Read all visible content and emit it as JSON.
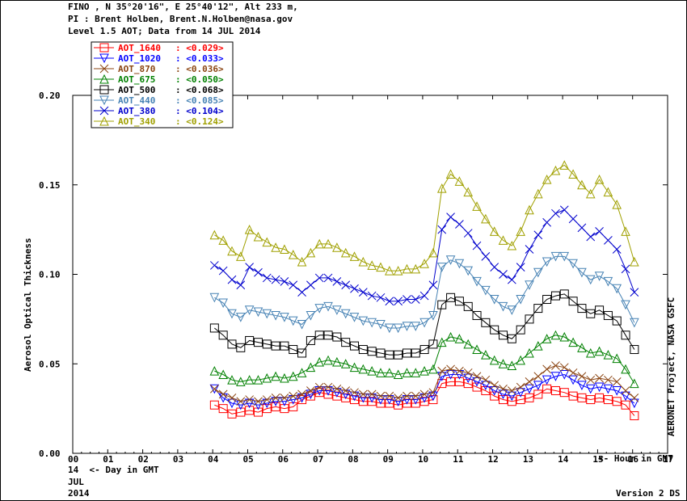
{
  "header": {
    "line1": "FINO , N 35°20'16\", E 25°40'12\", Alt 233 m,",
    "line2": "PI : Brent Holben, Brent.N.Holben@nasa.gov",
    "line3": "Level 1.5 AOT; Data from 14 JUL 2014"
  },
  "footer": {
    "day": "14",
    "day_label": "<- Day in GMT",
    "month": "JUL",
    "year": "2014",
    "version": "Version 2 DS"
  },
  "chart_data": {
    "type": "scatter",
    "title": "",
    "ylabel": "Aerosol Optical Thickness",
    "xlabel": "<- Hour in GMT",
    "right_label": "AERONET Project, NASA GSFC",
    "xlim": [
      0,
      17
    ],
    "ylim": [
      0.0,
      0.2
    ],
    "x_ticks": [
      "00",
      "01",
      "02",
      "03",
      "04",
      "05",
      "06",
      "07",
      "08",
      "09",
      "10",
      "11",
      "12",
      "13",
      "14",
      "15",
      "16",
      "17"
    ],
    "y_ticks": [
      "0.00",
      "0.05",
      "0.10",
      "0.15",
      "0.20"
    ],
    "legend_position": "top-left",
    "x": [
      4.05,
      4.3,
      4.55,
      4.8,
      5.05,
      5.3,
      5.55,
      5.8,
      6.05,
      6.3,
      6.55,
      6.8,
      7.05,
      7.3,
      7.55,
      7.8,
      8.05,
      8.3,
      8.55,
      8.8,
      9.05,
      9.3,
      9.55,
      9.8,
      10.05,
      10.3,
      10.55,
      10.8,
      11.05,
      11.3,
      11.55,
      11.8,
      12.05,
      12.3,
      12.55,
      12.8,
      13.05,
      13.3,
      13.55,
      13.8,
      14.05,
      14.3,
      14.55,
      14.8,
      15.05,
      15.3,
      15.55,
      15.8,
      16.05
    ],
    "series": [
      {
        "name": "AOT_1640",
        "mean": "<0.029>",
        "color": "#ff0000",
        "marker": "square",
        "values": [
          0.027,
          0.025,
          0.022,
          0.023,
          0.024,
          0.023,
          0.025,
          0.026,
          0.025,
          0.026,
          0.03,
          0.032,
          0.034,
          0.033,
          0.032,
          0.031,
          0.03,
          0.029,
          0.029,
          0.028,
          0.028,
          0.027,
          0.028,
          0.028,
          0.029,
          0.03,
          0.039,
          0.04,
          0.04,
          0.039,
          0.037,
          0.035,
          0.032,
          0.03,
          0.029,
          0.03,
          0.031,
          0.033,
          0.036,
          0.035,
          0.034,
          0.032,
          0.031,
          0.03,
          0.031,
          0.03,
          0.029,
          0.027,
          0.021
        ]
      },
      {
        "name": "AOT_1020",
        "mean": "<0.033>",
        "color": "#0000ff",
        "marker": "tri-down",
        "values": [
          0.036,
          0.031,
          0.028,
          0.027,
          0.028,
          0.027,
          0.028,
          0.029,
          0.029,
          0.03,
          0.031,
          0.033,
          0.035,
          0.035,
          0.034,
          0.033,
          0.032,
          0.031,
          0.031,
          0.03,
          0.03,
          0.029,
          0.03,
          0.03,
          0.031,
          0.032,
          0.043,
          0.044,
          0.044,
          0.042,
          0.04,
          0.038,
          0.035,
          0.033,
          0.032,
          0.034,
          0.036,
          0.038,
          0.041,
          0.043,
          0.044,
          0.041,
          0.038,
          0.036,
          0.037,
          0.036,
          0.035,
          0.032,
          0.028
        ]
      },
      {
        "name": "AOT_870",
        "mean": "<0.036>",
        "color": "#8b4513",
        "marker": "x",
        "values": [
          0.036,
          0.033,
          0.031,
          0.029,
          0.03,
          0.029,
          0.03,
          0.031,
          0.031,
          0.032,
          0.033,
          0.035,
          0.037,
          0.037,
          0.036,
          0.035,
          0.034,
          0.033,
          0.033,
          0.032,
          0.032,
          0.031,
          0.032,
          0.032,
          0.033,
          0.034,
          0.046,
          0.047,
          0.046,
          0.045,
          0.043,
          0.041,
          0.038,
          0.036,
          0.035,
          0.037,
          0.04,
          0.043,
          0.047,
          0.049,
          0.048,
          0.045,
          0.043,
          0.041,
          0.042,
          0.041,
          0.04,
          0.035,
          0.031
        ]
      },
      {
        "name": "AOT_675",
        "mean": "<0.050>",
        "color": "#008000",
        "marker": "tri-up",
        "values": [
          0.046,
          0.044,
          0.041,
          0.04,
          0.041,
          0.041,
          0.042,
          0.043,
          0.042,
          0.043,
          0.045,
          0.048,
          0.051,
          0.052,
          0.051,
          0.05,
          0.048,
          0.047,
          0.046,
          0.045,
          0.045,
          0.044,
          0.045,
          0.045,
          0.046,
          0.047,
          0.062,
          0.065,
          0.064,
          0.061,
          0.058,
          0.055,
          0.052,
          0.05,
          0.049,
          0.052,
          0.056,
          0.06,
          0.064,
          0.066,
          0.065,
          0.062,
          0.059,
          0.056,
          0.057,
          0.055,
          0.053,
          0.047,
          0.039
        ]
      },
      {
        "name": "AOT_500",
        "mean": "<0.068>",
        "color": "#000000",
        "marker": "square",
        "values": [
          0.07,
          0.066,
          0.061,
          0.059,
          0.063,
          0.062,
          0.061,
          0.06,
          0.06,
          0.058,
          0.056,
          0.063,
          0.066,
          0.066,
          0.065,
          0.062,
          0.06,
          0.058,
          0.057,
          0.056,
          0.055,
          0.055,
          0.056,
          0.056,
          0.058,
          0.061,
          0.083,
          0.087,
          0.085,
          0.082,
          0.077,
          0.073,
          0.069,
          0.066,
          0.064,
          0.069,
          0.075,
          0.081,
          0.086,
          0.088,
          0.089,
          0.085,
          0.081,
          0.078,
          0.08,
          0.077,
          0.074,
          0.066,
          0.058
        ]
      },
      {
        "name": "AOT_440",
        "mean": "<0.085>",
        "color": "#4682b4",
        "marker": "tri-down",
        "values": [
          0.087,
          0.084,
          0.078,
          0.076,
          0.08,
          0.079,
          0.078,
          0.077,
          0.076,
          0.074,
          0.072,
          0.077,
          0.081,
          0.082,
          0.08,
          0.078,
          0.076,
          0.074,
          0.073,
          0.072,
          0.07,
          0.07,
          0.071,
          0.071,
          0.073,
          0.077,
          0.104,
          0.108,
          0.106,
          0.102,
          0.096,
          0.091,
          0.086,
          0.082,
          0.08,
          0.086,
          0.094,
          0.101,
          0.107,
          0.11,
          0.11,
          0.106,
          0.101,
          0.097,
          0.099,
          0.096,
          0.092,
          0.083,
          0.073
        ]
      },
      {
        "name": "AOT_380",
        "mean": "<0.104>",
        "color": "#0000cd",
        "marker": "x",
        "values": [
          0.105,
          0.102,
          0.097,
          0.094,
          0.104,
          0.101,
          0.098,
          0.097,
          0.096,
          0.094,
          0.09,
          0.094,
          0.098,
          0.098,
          0.096,
          0.094,
          0.092,
          0.09,
          0.088,
          0.087,
          0.085,
          0.085,
          0.086,
          0.086,
          0.088,
          0.094,
          0.125,
          0.132,
          0.128,
          0.123,
          0.116,
          0.11,
          0.104,
          0.1,
          0.097,
          0.104,
          0.114,
          0.122,
          0.129,
          0.134,
          0.136,
          0.131,
          0.126,
          0.121,
          0.124,
          0.119,
          0.114,
          0.103,
          0.09
        ]
      },
      {
        "name": "AOT_340",
        "mean": "<0.124>",
        "color": "#a0a000",
        "marker": "tri-up",
        "values": [
          0.122,
          0.119,
          0.113,
          0.11,
          0.125,
          0.121,
          0.118,
          0.115,
          0.114,
          0.111,
          0.107,
          0.112,
          0.117,
          0.117,
          0.115,
          0.112,
          0.11,
          0.107,
          0.105,
          0.104,
          0.102,
          0.102,
          0.103,
          0.103,
          0.106,
          0.112,
          0.148,
          0.156,
          0.152,
          0.146,
          0.138,
          0.131,
          0.124,
          0.119,
          0.116,
          0.124,
          0.136,
          0.145,
          0.153,
          0.158,
          0.161,
          0.156,
          0.15,
          0.145,
          0.153,
          0.146,
          0.139,
          0.124,
          0.107
        ]
      }
    ]
  }
}
